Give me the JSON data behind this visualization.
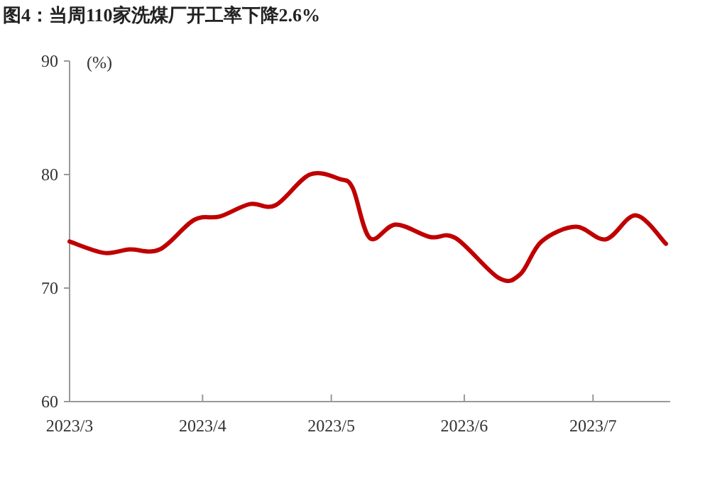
{
  "chart_data": {
    "type": "line",
    "title": "图4：当周110家洗煤厂开工率下降2.6%",
    "ylabel": "(%)",
    "x": [
      "2023-03-01",
      "2023-03-09",
      "2023-03-15",
      "2023-03-22",
      "2023-03-30",
      "2023-04-05",
      "2023-04-12",
      "2023-04-18",
      "2023-04-26",
      "2023-05-03",
      "2023-05-06",
      "2023-05-10",
      "2023-05-16",
      "2023-05-24",
      "2023-05-30",
      "2023-06-09",
      "2023-06-14",
      "2023-06-19",
      "2023-06-27",
      "2023-07-04",
      "2023-07-11",
      "2023-07-18"
    ],
    "series": [
      {
        "color": "#c00000",
        "values": [
          74.1,
          73.1,
          73.4,
          73.4,
          76.0,
          76.3,
          77.4,
          77.3,
          80.0,
          79.6,
          78.8,
          74.4,
          75.6,
          74.5,
          74.4,
          70.9,
          71.2,
          74.1,
          75.4,
          74.3,
          76.4,
          73.9
        ]
      }
    ],
    "xlim": [
      "2023-03-01",
      "2023-07-19"
    ],
    "xticks": [
      {
        "value": "2023-03-01",
        "label": "2023/3"
      },
      {
        "value": "2023-04-01",
        "label": "2023/4"
      },
      {
        "value": "2023-05-01",
        "label": "2023/5"
      },
      {
        "value": "2023-06-01",
        "label": "2023/6"
      },
      {
        "value": "2023-07-01",
        "label": "2023/7"
      }
    ],
    "ylim": [
      60,
      90
    ],
    "yticks": [
      60,
      70,
      80,
      90
    ],
    "grid": false,
    "marker": "none",
    "line_style": "solid"
  }
}
